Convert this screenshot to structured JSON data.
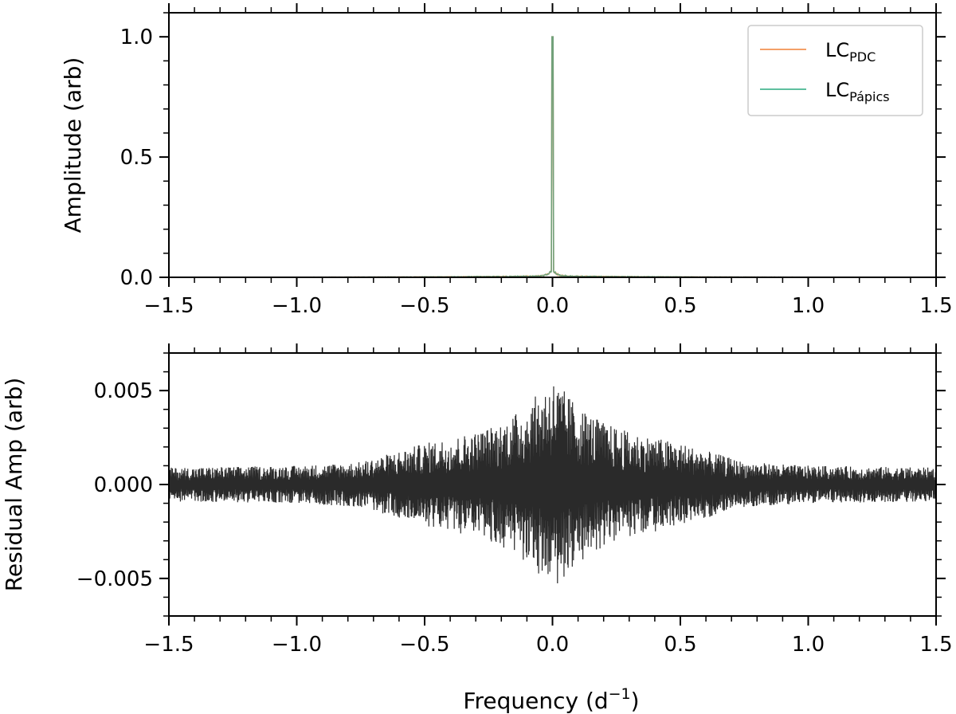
{
  "chart_data": [
    {
      "type": "line",
      "panel": "top",
      "title": "",
      "xlabel": "",
      "ylabel": "Amplitude (arb)",
      "xlim": [
        -1.5,
        1.5
      ],
      "ylim": [
        0.0,
        1.1
      ],
      "x_ticks": [
        -1.5,
        -1.0,
        -0.5,
        0.0,
        0.5,
        1.0,
        1.5
      ],
      "x_tick_labels": [
        "−1.5",
        "−1.0",
        "−0.5",
        "0.0",
        "0.5",
        "1.0",
        "1.5"
      ],
      "y_ticks": [
        0.0,
        0.5,
        1.0
      ],
      "y_tick_labels": [
        "0.0",
        "0.5",
        "1.0"
      ],
      "grid": false,
      "legend_position": "top-right",
      "series": [
        {
          "name": "LC_PDC",
          "legend_main": "LC",
          "legend_sub": "PDC",
          "color": "#f4a068",
          "description_points": {
            "peak_x": 0.0,
            "peak_y": 1.0,
            "wing_level": 0.005,
            "near_center_level": 0.035
          }
        },
        {
          "name": "LC_Pápics",
          "legend_main": "LC",
          "legend_sub": "Pápics",
          "color": "#5fbf9f",
          "description_points": {
            "peak_x": 0.0,
            "peak_y": 1.0,
            "wing_level": 0.005,
            "near_center_level": 0.035
          }
        }
      ],
      "overlap_color": "#6aa07a"
    },
    {
      "type": "line",
      "panel": "bottom",
      "title": "",
      "xlabel": "Frequency (d⁻¹)",
      "xlabel_main": "Frequency (d",
      "xlabel_sup": "−1",
      "xlabel_close": ")",
      "ylabel": "Residual Amp (arb)",
      "xlim": [
        -1.5,
        1.5
      ],
      "ylim": [
        -0.007,
        0.007
      ],
      "x_ticks": [
        -1.5,
        -1.0,
        -0.5,
        0.0,
        0.5,
        1.0,
        1.5
      ],
      "x_tick_labels": [
        "−1.5",
        "−1.0",
        "−0.5",
        "0.0",
        "0.5",
        "1.0",
        "1.5"
      ],
      "y_ticks": [
        -0.005,
        0.0,
        0.005
      ],
      "y_tick_labels": [
        "−0.005",
        "0.000",
        "0.005"
      ],
      "grid": false,
      "series": [
        {
          "name": "residual",
          "color": "#2a2a2a",
          "envelope": [
            {
              "x": -1.5,
              "amp": 0.0009
            },
            {
              "x": -1.0,
              "amp": 0.001
            },
            {
              "x": -0.75,
              "amp": 0.0012
            },
            {
              "x": -0.5,
              "amp": 0.0022
            },
            {
              "x": -0.3,
              "amp": 0.0028
            },
            {
              "x": -0.2,
              "amp": 0.0033
            },
            {
              "x": -0.1,
              "amp": 0.0042
            },
            {
              "x": 0.0,
              "amp": 0.0057
            },
            {
              "x": 0.1,
              "amp": 0.0042
            },
            {
              "x": 0.2,
              "amp": 0.0033
            },
            {
              "x": 0.3,
              "amp": 0.0028
            },
            {
              "x": 0.5,
              "amp": 0.0022
            },
            {
              "x": 0.75,
              "amp": 0.0012
            },
            {
              "x": 1.0,
              "amp": 0.001
            },
            {
              "x": 1.5,
              "amp": 0.0009
            }
          ]
        }
      ]
    }
  ]
}
